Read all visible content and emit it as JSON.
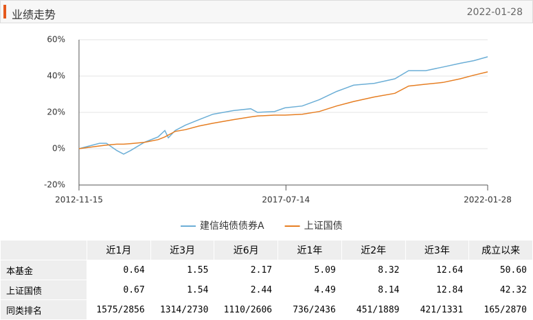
{
  "header": {
    "title": "业绩走势",
    "date": "2022-01-28"
  },
  "chart_data": {
    "type": "line",
    "x": [
      "2012-11-15",
      "2013-05-03",
      "2013-06-29",
      "2013-09-22",
      "2013-11-17",
      "2014-01-13",
      "2014-05-06",
      "2014-08-27",
      "2014-10-22",
      "2014-11-20",
      "2015-01-15",
      "2015-04-10",
      "2015-07-31",
      "2015-11-21",
      "2016-05-08",
      "2016-09-27",
      "2016-11-22",
      "2017-04-12",
      "2017-07-06",
      "2017-11-24",
      "2018-04-15",
      "2018-09-03",
      "2019-01-22",
      "2019-07-11",
      "2019-12-27",
      "2020-04-18",
      "2020-09-06",
      "2021-01-26",
      "2021-06-16",
      "2021-10-07",
      "2022-01-28"
    ],
    "series": [
      {
        "name": "建信纯债债券A",
        "color": "#6baed6",
        "values": [
          0,
          3,
          3,
          -1,
          -3,
          -1,
          3.5,
          6.5,
          10,
          6,
          10,
          13,
          16,
          19,
          21,
          22,
          20,
          20.5,
          22.5,
          23.5,
          27,
          31.5,
          35,
          36,
          38.5,
          43,
          43,
          45,
          47,
          48.5,
          50.6
        ]
      },
      {
        "name": "上证国债",
        "color": "#e67e22",
        "values": [
          0,
          1.5,
          2,
          2.5,
          2.5,
          2.8,
          3.5,
          5,
          6.5,
          7.5,
          9.5,
          10.5,
          12.5,
          14,
          16,
          17.5,
          18,
          18.5,
          18.5,
          19,
          20.5,
          23.5,
          26,
          28.5,
          30.5,
          34.5,
          35.5,
          36.5,
          38.5,
          40.5,
          42.32
        ]
      }
    ],
    "xlim": [
      "2012-11-15",
      "2022-01-28"
    ],
    "xticks": [
      "2012-11-15",
      "2017-07-14",
      "2022-01-28"
    ],
    "ylim": [
      -20,
      60
    ],
    "yticks": [
      {
        "value": -20,
        "label": "-20%"
      },
      {
        "value": 0,
        "label": "0%"
      },
      {
        "value": 20,
        "label": "20%"
      },
      {
        "value": 40,
        "label": "40%"
      },
      {
        "value": 60,
        "label": "60%"
      }
    ],
    "grid": true,
    "legend": "bottom"
  },
  "table": {
    "columns": [
      "近1月",
      "近3月",
      "近6月",
      "近1年",
      "近2年",
      "近3年",
      "成立以来"
    ],
    "rows": [
      {
        "label": "本基金",
        "cells": [
          "0.64",
          "1.55",
          "2.17",
          "5.09",
          "8.32",
          "12.64",
          "50.60"
        ]
      },
      {
        "label": "上证国债",
        "cells": [
          "0.67",
          "1.54",
          "2.44",
          "4.49",
          "8.14",
          "12.84",
          "42.32"
        ]
      },
      {
        "label": "同类排名",
        "cells": [
          "1575/2856",
          "1314/2730",
          "1110/2606",
          "736/2436",
          "451/1889",
          "421/1331",
          "165/2870"
        ]
      }
    ]
  }
}
